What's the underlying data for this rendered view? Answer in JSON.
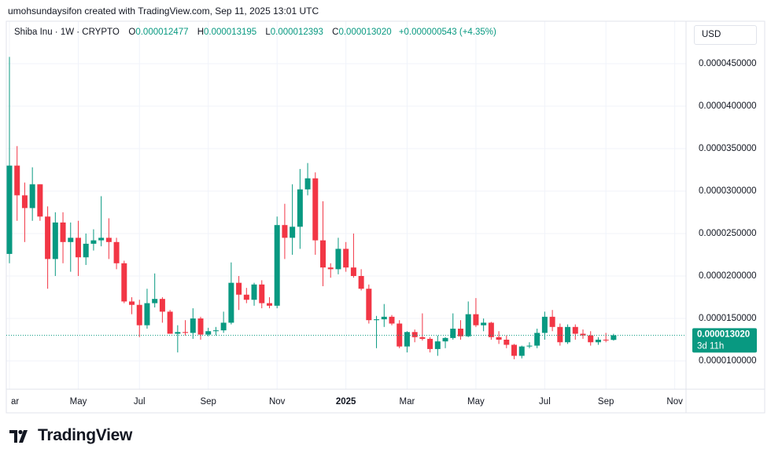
{
  "header": {
    "credit": "umohsundaysifon created with TradingView.com, Sep 11, 2025 13:01 UTC"
  },
  "legend": {
    "symbol": "Shiba Inu · 1W · CRYPTO",
    "o_label": "O",
    "o": "0.000012477",
    "h_label": "H",
    "h": "0.000013195",
    "l_label": "L",
    "l": "0.000012393",
    "c_label": "C",
    "c": "0.000013020",
    "change": "+0.000000543 (+4.35%)"
  },
  "currency": "USD",
  "brand": "TradingView",
  "chart_data": {
    "type": "candlestick",
    "up_color": "#089981",
    "down_color": "#f23645",
    "grid": true,
    "categories": [
      "ar",
      null,
      null,
      null,
      null,
      null,
      null,
      null,
      null,
      "May",
      null,
      null,
      null,
      null,
      null,
      null,
      null,
      "Jul",
      null,
      null,
      null,
      null,
      null,
      null,
      null,
      null,
      "Sep",
      null,
      null,
      null,
      null,
      null,
      null,
      null,
      null,
      "Nov",
      null,
      null,
      null,
      null,
      null,
      null,
      null,
      null,
      "2025",
      null,
      null,
      null,
      null,
      null,
      null,
      null,
      "Mar",
      null,
      null,
      null,
      null,
      null,
      null,
      null,
      null,
      "May",
      null,
      null,
      null,
      null,
      null,
      null,
      null,
      null,
      "Jul",
      null,
      null,
      null,
      null,
      null,
      null,
      null,
      "Sep",
      null,
      null,
      null,
      null,
      null,
      null,
      null,
      null,
      "Nov",
      null
    ],
    "open": [
      2.26e-05,
      3.3e-05,
      2.95e-05,
      2.8e-05,
      3.08e-05,
      2.7e-05,
      2.2e-05,
      2.63e-05,
      2.4e-05,
      2.45e-05,
      2.22e-05,
      2.38e-05,
      2.42e-05,
      2.45e-05,
      2.4e-05,
      2.15e-05,
      1.7e-05,
      1.66e-05,
      1.42e-05,
      1.68e-05,
      1.73e-05,
      1.58e-05,
      1.32e-05,
      1.34e-05,
      1.33e-05,
      1.5e-05,
      1.31e-05,
      1.35e-05,
      1.36e-05,
      1.45e-05,
      1.92e-05,
      1.78e-05,
      1.72e-05,
      1.9e-05,
      1.68e-05,
      1.65e-05,
      2.6e-05,
      2.45e-05,
      2.58e-05,
      3.02e-05,
      3.15e-05,
      2.42e-05,
      2.1e-05,
      2.08e-05,
      2.32e-05,
      2.1e-05,
      2e-05,
      1.85e-05,
      1.48e-05,
      1.49e-05,
      1.52e-05,
      1.44e-05,
      1.17e-05,
      1.34e-05,
      1.28e-05,
      1.26e-05,
      1.14e-05,
      1.23e-05,
      1.27e-05,
      1.38e-05,
      1.29e-05,
      1.55e-05,
      1.42e-05,
      1.45e-05,
      1.28e-05,
      1.25e-05,
      1.19e-05,
      1.06e-05,
      1.17e-05,
      1.18e-05,
      1.33e-05,
      1.52e-05,
      1.4e-05,
      1.22e-05,
      1.4e-05,
      1.32e-05,
      1.3e-05,
      1.22e-05,
      1.25e-05,
      1.2477e-05,
      null,
      null,
      null,
      null,
      null,
      null,
      null,
      null,
      null
    ],
    "high": [
      4.58e-05,
      3.53e-05,
      3.1e-05,
      3.28e-05,
      3.08e-05,
      2.82e-05,
      2.75e-05,
      2.75e-05,
      2.63e-05,
      2.65e-05,
      2.5e-05,
      2.55e-05,
      2.94e-05,
      2.68e-05,
      2.45e-05,
      2.18e-05,
      1.75e-05,
      1.72e-05,
      1.85e-05,
      2.03e-05,
      1.75e-05,
      1.6e-05,
      1.42e-05,
      1.48e-05,
      1.62e-05,
      1.52e-05,
      1.39e-05,
      1.4e-05,
      1.58e-05,
      2.16e-05,
      2e-05,
      1.86e-05,
      1.92e-05,
      1.95e-05,
      1.75e-05,
      2.7e-05,
      2.85e-05,
      3.08e-05,
      3.26e-05,
      3.33e-05,
      3.22e-05,
      2.88e-05,
      2.15e-05,
      2.45e-05,
      2.4e-05,
      2.5e-05,
      2.08e-05,
      1.9e-05,
      1.53e-05,
      1.67e-05,
      1.54e-05,
      1.48e-05,
      1.35e-05,
      1.37e-05,
      1.56e-05,
      1.28e-05,
      1.3e-05,
      1.28e-05,
      1.56e-05,
      1.48e-05,
      1.7e-05,
      1.74e-05,
      1.5e-05,
      1.46e-05,
      1.35e-05,
      1.3e-05,
      1.2e-05,
      1.18e-05,
      1.22e-05,
      1.38e-05,
      1.58e-05,
      1.6e-05,
      1.44e-05,
      1.43e-05,
      1.43e-05,
      1.37e-05,
      1.35e-05,
      1.28e-05,
      1.33e-05,
      1.3195e-05,
      null,
      null,
      null,
      null,
      null,
      null,
      null,
      null,
      null
    ],
    "low": [
      2.15e-05,
      2.65e-05,
      2.4e-05,
      2.65e-05,
      2.65e-05,
      1.85e-05,
      2e-05,
      2.15e-05,
      2.05e-05,
      2e-05,
      2.13e-05,
      2.3e-05,
      2.35e-05,
      2.2e-05,
      2.08e-05,
      1.68e-05,
      1.55e-05,
      1.28e-05,
      1.38e-05,
      1.63e-05,
      1.45e-05,
      1.32e-05,
      1.1e-05,
      1.3e-05,
      1.26e-05,
      1.25e-05,
      1.29e-05,
      1.3e-05,
      1.33e-05,
      1.43e-05,
      1.6e-05,
      1.68e-05,
      1.65e-05,
      1.62e-05,
      1.62e-05,
      1.62e-05,
      2.2e-05,
      2.25e-05,
      2.32e-05,
      2.95e-05,
      2.25e-05,
      1.88e-05,
      1.98e-05,
      2.02e-05,
      2.05e-05,
      1.98e-05,
      1.83e-05,
      1.44e-05,
      1.15e-05,
      1.4e-05,
      1.42e-05,
      1.15e-05,
      1.1e-05,
      1.22e-05,
      1.24e-05,
      1.1e-05,
      1.06e-05,
      1.15e-05,
      1.25e-05,
      1.25e-05,
      1.28e-05,
      1.4e-05,
      1.35e-05,
      1.25e-05,
      1.2e-05,
      1.15e-05,
      1.02e-05,
      1.03e-05,
      1.15e-05,
      1.15e-05,
      1.25e-05,
      1.35e-05,
      1.18e-05,
      1.2e-05,
      1.25e-05,
      1.26e-05,
      1.18e-05,
      1.19e-05,
      1.22e-05,
      1.2393e-05,
      null,
      null,
      null,
      null,
      null,
      null,
      null,
      null,
      null
    ],
    "close": [
      3.3e-05,
      2.95e-05,
      2.8e-05,
      3.08e-05,
      2.7e-05,
      2.2e-05,
      2.63e-05,
      2.4e-05,
      2.45e-05,
      2.22e-05,
      2.38e-05,
      2.42e-05,
      2.45e-05,
      2.4e-05,
      2.15e-05,
      1.7e-05,
      1.66e-05,
      1.42e-05,
      1.68e-05,
      1.73e-05,
      1.58e-05,
      1.32e-05,
      1.34e-05,
      1.33e-05,
      1.5e-05,
      1.31e-05,
      1.35e-05,
      1.36e-05,
      1.45e-05,
      1.92e-05,
      1.78e-05,
      1.72e-05,
      1.9e-05,
      1.68e-05,
      1.65e-05,
      2.6e-05,
      2.45e-05,
      2.58e-05,
      3.02e-05,
      3.15e-05,
      2.42e-05,
      2.1e-05,
      2.08e-05,
      2.32e-05,
      2.1e-05,
      2e-05,
      1.85e-05,
      1.48e-05,
      1.49e-05,
      1.52e-05,
      1.44e-05,
      1.17e-05,
      1.34e-05,
      1.28e-05,
      1.26e-05,
      1.14e-05,
      1.23e-05,
      1.27e-05,
      1.38e-05,
      1.29e-05,
      1.55e-05,
      1.42e-05,
      1.45e-05,
      1.28e-05,
      1.25e-05,
      1.19e-05,
      1.06e-05,
      1.17e-05,
      1.18e-05,
      1.33e-05,
      1.52e-05,
      1.4e-05,
      1.22e-05,
      1.4e-05,
      1.32e-05,
      1.3e-05,
      1.22e-05,
      1.25e-05,
      1.248e-05,
      1.302e-05,
      null,
      null,
      null,
      null,
      null,
      null,
      null,
      null,
      null
    ],
    "ylim": [
      6.667e-06,
      5e-05
    ],
    "yticks": [
      {
        "value": 1e-05,
        "label": "0.0000100000"
      },
      {
        "value": 1.5e-05,
        "label": "0.0000150000"
      },
      {
        "value": 2e-05,
        "label": "0.0000200000"
      },
      {
        "value": 2.5e-05,
        "label": "0.0000250000"
      },
      {
        "value": 3e-05,
        "label": "0.0000300000"
      },
      {
        "value": 3.5e-05,
        "label": "0.0000350000"
      },
      {
        "value": 4e-05,
        "label": "0.0000400000"
      },
      {
        "value": 4.5e-05,
        "label": "0.0000450000"
      }
    ],
    "last_price": {
      "value": 1.302e-05,
      "label": "0.000013020"
    },
    "countdown": "3d 11h"
  }
}
